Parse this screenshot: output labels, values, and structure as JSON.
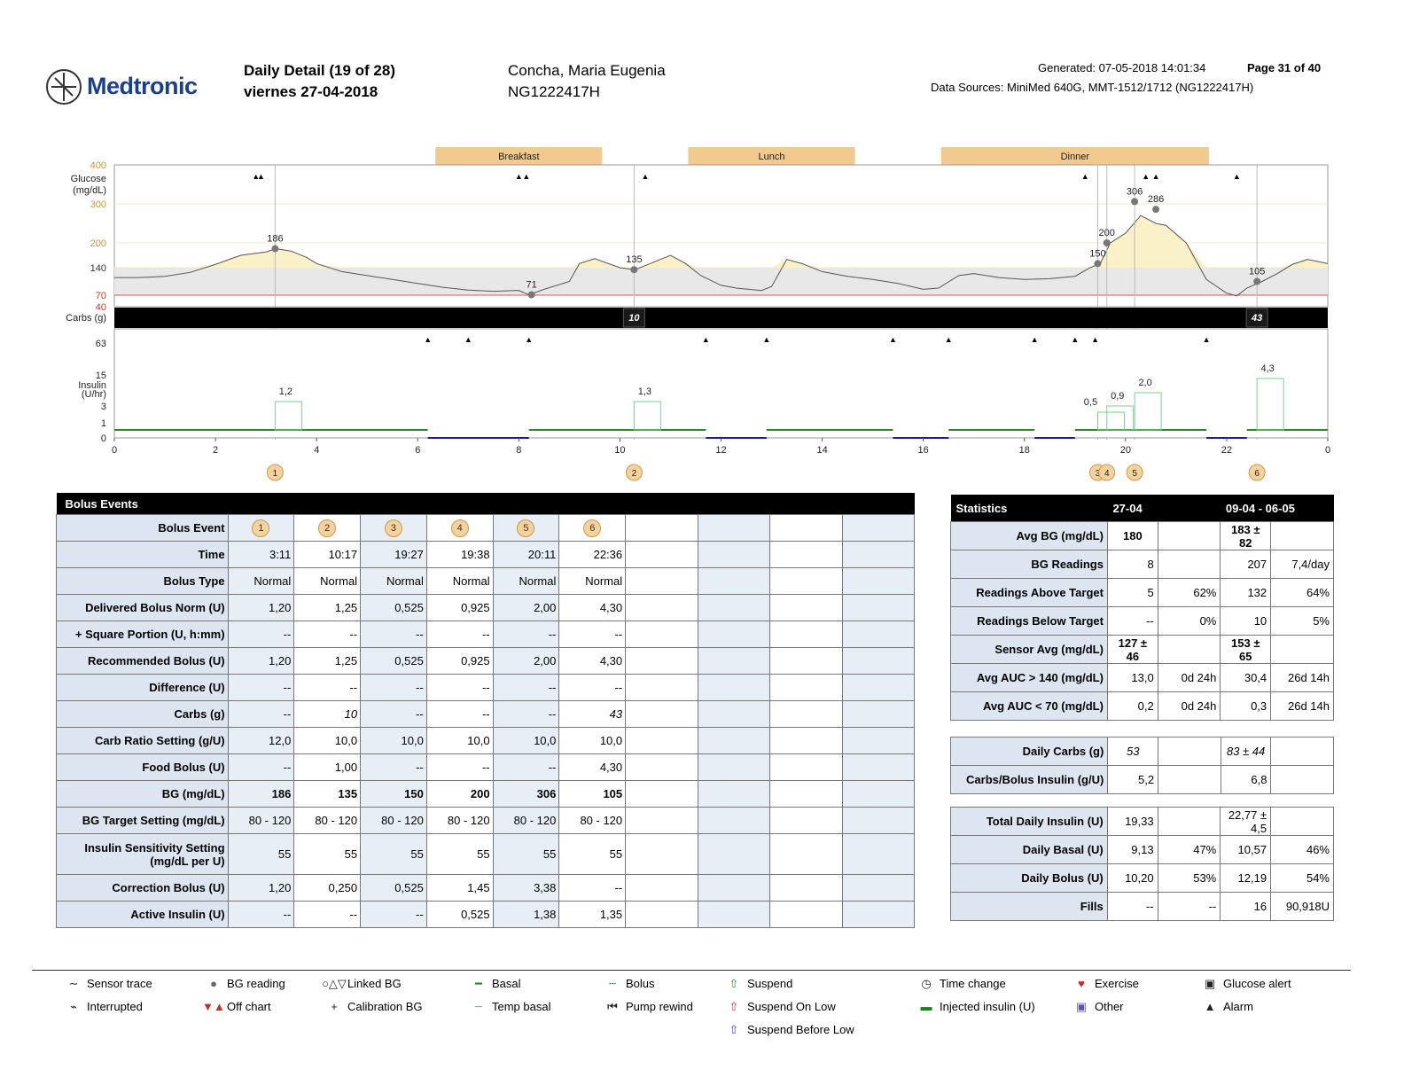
{
  "header": {
    "logo": "Medtronic",
    "title_line1": "Daily Detail (19 of 28)",
    "title_line2": "viernes 27-04-2018",
    "patient_name": "Concha, Maria Eugenia",
    "patient_id": "NG1222417H",
    "generated": "Generated: 07-05-2018 14:01:34",
    "page": "Page 31 of 40",
    "data_sources": "Data Sources: MiniMed 640G, MMT-1512/1712 (NG1222417H)"
  },
  "chart_data": {
    "type": "line",
    "meals": [
      {
        "label": "Breakfast",
        "start": 6.0,
        "end": 10.0
      },
      {
        "label": "Lunch",
        "start": 11.0,
        "end": 15.0
      },
      {
        "label": "Dinner",
        "start": 16.0,
        "end": 22.0
      }
    ],
    "glucose_axis": {
      "label": "Glucose (mg/dL)",
      "ticks": [
        "400",
        "300",
        "200",
        "140",
        "70",
        "40"
      ],
      "ylim": [
        40,
        400
      ],
      "target_low": 70,
      "target_range": [
        70,
        140
      ]
    },
    "sensor": {
      "x": [
        0,
        0.5,
        1,
        1.5,
        2,
        2.5,
        3,
        3.2,
        3.5,
        3.8,
        4,
        4.5,
        5,
        5.5,
        6,
        6.5,
        7,
        7.5,
        8,
        8.2,
        8.5,
        9,
        9.2,
        9.5,
        10,
        10.3,
        10.6,
        11,
        11.3,
        11.6,
        12,
        12.3,
        12.8,
        13,
        13.3,
        13.6,
        14,
        14.5,
        15,
        15.5,
        16,
        16.3,
        16.7,
        17,
        17.5,
        18,
        18.5,
        19,
        19.3,
        19.5,
        19.7,
        20,
        20.3,
        20.6,
        20.8,
        21.2,
        21.6,
        22,
        22.2,
        22.4,
        22.7,
        23,
        23.3,
        23.6,
        24
      ],
      "y": [
        115,
        115,
        118,
        128,
        148,
        170,
        178,
        186,
        180,
        165,
        150,
        130,
        120,
        110,
        100,
        90,
        83,
        80,
        82,
        71,
        85,
        105,
        150,
        162,
        140,
        135,
        150,
        170,
        150,
        120,
        95,
        88,
        82,
        92,
        160,
        150,
        130,
        118,
        110,
        100,
        85,
        88,
        120,
        125,
        115,
        110,
        112,
        118,
        140,
        150,
        200,
        225,
        270,
        250,
        245,
        200,
        110,
        75,
        68,
        88,
        105,
        125,
        148,
        160,
        150
      ]
    },
    "bg_readings": [
      {
        "x": 3.18,
        "value": 186
      },
      {
        "x": 8.25,
        "value": 71
      },
      {
        "x": 10.28,
        "value": 135
      },
      {
        "x": 19.45,
        "value": 150
      },
      {
        "x": 19.63,
        "value": 200
      },
      {
        "x": 20.18,
        "value": 306
      },
      {
        "x": 20.6,
        "value": 286
      },
      {
        "x": 22.6,
        "value": 105
      }
    ],
    "carbs_axis": {
      "label": "Carbs (g)"
    },
    "carbs": [
      {
        "x": 10.28,
        "value": 10
      },
      {
        "x": 22.6,
        "value": 43
      }
    ],
    "insulin_axis": {
      "label": "Insulin (U/hr)",
      "ticks": [
        "63",
        "15",
        "3",
        "1",
        "0"
      ]
    },
    "boluses": [
      {
        "x": 3.18,
        "value": "1,2"
      },
      {
        "x": 10.28,
        "value": "1,3"
      },
      {
        "x": 19.45,
        "value": "0,5"
      },
      {
        "x": 19.63,
        "value": "0,9"
      },
      {
        "x": 20.18,
        "value": "2,0"
      },
      {
        "x": 22.6,
        "value": "4,3"
      }
    ],
    "x_axis": {
      "ticks": [
        "0",
        "2",
        "4",
        "6",
        "8",
        "10",
        "12",
        "14",
        "16",
        "18",
        "20",
        "22",
        "0"
      ],
      "xlim": [
        0,
        24
      ]
    },
    "event_markers": [
      {
        "x": 3.18,
        "label": "1"
      },
      {
        "x": 10.28,
        "label": "2"
      },
      {
        "x": 19.45,
        "label": "3"
      },
      {
        "x": 19.63,
        "label": "4"
      },
      {
        "x": 20.18,
        "label": "5"
      },
      {
        "x": 22.6,
        "label": "6"
      }
    ]
  },
  "bolus_table": {
    "title": "Bolus Events",
    "events": [
      "1",
      "2",
      "3",
      "4",
      "5",
      "6"
    ],
    "rows": [
      {
        "label": "Time",
        "values": [
          "3:11",
          "10:17",
          "19:27",
          "19:38",
          "20:11",
          "22:36"
        ]
      },
      {
        "label": "Bolus Type",
        "values": [
          "Normal",
          "Normal",
          "Normal",
          "Normal",
          "Normal",
          "Normal"
        ]
      },
      {
        "label": "Delivered Bolus Norm (U)",
        "values": [
          "1,20",
          "1,25",
          "0,525",
          "0,925",
          "2,00",
          "4,30"
        ]
      },
      {
        "label": "+ Square Portion (U, h:mm)",
        "values": [
          "--",
          "--",
          "--",
          "--",
          "--",
          "--"
        ]
      },
      {
        "label": "Recommended Bolus (U)",
        "values": [
          "1,20",
          "1,25",
          "0,525",
          "0,925",
          "2,00",
          "4,30"
        ]
      },
      {
        "label": "Difference (U)",
        "values": [
          "--",
          "--",
          "--",
          "--",
          "--",
          "--"
        ]
      },
      {
        "label": "Carbs (g)",
        "values": [
          "--",
          "10",
          "--",
          "--",
          "--",
          "43"
        ]
      },
      {
        "label": "Carb Ratio Setting (g/U)",
        "values": [
          "12,0",
          "10,0",
          "10,0",
          "10,0",
          "10,0",
          "10,0"
        ]
      },
      {
        "label": "Food Bolus (U)",
        "values": [
          "--",
          "1,00",
          "--",
          "--",
          "--",
          "4,30"
        ]
      },
      {
        "label": "BG (mg/dL)",
        "values": [
          "186",
          "135",
          "150",
          "200",
          "306",
          "105"
        ]
      },
      {
        "label": "BG Target Setting (mg/dL)",
        "values": [
          "80 -  120",
          "80 -  120",
          "80 -  120",
          "80 -  120",
          "80 -  120",
          "80 -  120"
        ]
      },
      {
        "label": "Insulin Sensitivity Setting (mg/dL per U)",
        "values": [
          "55",
          "55",
          "55",
          "55",
          "55",
          "55"
        ]
      },
      {
        "label": "Correction Bolus (U)",
        "values": [
          "1,20",
          "0,250",
          "0,525",
          "1,45",
          "3,38",
          "--"
        ]
      },
      {
        "label": "Active Insulin (U)",
        "values": [
          "--",
          "--",
          "--",
          "0,525",
          "1,38",
          "1,35"
        ]
      }
    ]
  },
  "stats": {
    "title": "Statistics",
    "col1": "27-04",
    "col2": "09-04  - 06-05",
    "groups": [
      [
        {
          "label": "Avg BG (mg/dL)",
          "a": "180",
          "b": "",
          "c": "183 ± 82",
          "d": ""
        },
        {
          "label": "BG Readings",
          "a": "8",
          "b": "",
          "c": "207",
          "d": "7,4/day"
        },
        {
          "label": "Readings Above Target",
          "a": "5",
          "b": "62%",
          "c": "132",
          "d": "64%"
        },
        {
          "label": "Readings Below Target",
          "a": "--",
          "b": "0%",
          "c": "10",
          "d": "5%"
        },
        {
          "label": "Sensor Avg (mg/dL)",
          "a": "127 ± 46",
          "b": "",
          "c": "153 ± 65",
          "d": ""
        },
        {
          "label": "Avg AUC > 140 (mg/dL)",
          "a": "13,0",
          "b": "0d 24h",
          "c": "30,4",
          "d": "26d 14h"
        },
        {
          "label": "Avg AUC < 70 (mg/dL)",
          "a": "0,2",
          "b": "0d 24h",
          "c": "0,3",
          "d": "26d 14h"
        }
      ],
      [
        {
          "label": "Daily Carbs (g)",
          "a": "53",
          "b": "",
          "c": "83 ± 44",
          "d": ""
        },
        {
          "label": "Carbs/Bolus Insulin (g/U)",
          "a": "5,2",
          "b": "",
          "c": "6,8",
          "d": ""
        }
      ],
      [
        {
          "label": "Total Daily Insulin (U)",
          "a": "19,33",
          "b": "",
          "c": "22,77 ± 4,5",
          "d": ""
        },
        {
          "label": "Daily Basal (U)",
          "a": "9,13",
          "b": "47%",
          "c": "10,57",
          "d": "46%"
        },
        {
          "label": "Daily Bolus (U)",
          "a": "10,20",
          "b": "53%",
          "c": "12,19",
          "d": "54%"
        },
        {
          "label": "Fills",
          "a": "--",
          "b": "--",
          "c": "16",
          "d": "90,918U"
        }
      ]
    ]
  },
  "legend": [
    {
      "icon": "sensor-trace-icon",
      "label": "Sensor trace"
    },
    {
      "icon": "bg-reading-icon",
      "label": "BG reading"
    },
    {
      "icon": "linked-bg-icon",
      "label": "Linked BG"
    },
    {
      "icon": "basal-icon",
      "label": "Basal"
    },
    {
      "icon": "bolus-icon",
      "label": "Bolus"
    },
    {
      "icon": "suspend-icon",
      "label": "Suspend"
    },
    {
      "icon": "time-change-icon",
      "label": "Time change"
    },
    {
      "icon": "exercise-icon",
      "label": "Exercise"
    },
    {
      "icon": "glucose-alert-icon",
      "label": "Glucose alert"
    },
    {
      "icon": "interrupted-icon",
      "label": "Interrupted"
    },
    {
      "icon": "off-chart-icon",
      "label": "Off chart"
    },
    {
      "icon": "calibration-bg-icon",
      "label": "Calibration BG"
    },
    {
      "icon": "temp-basal-icon",
      "label": "Temp basal"
    },
    {
      "icon": "pump-rewind-icon",
      "label": "Pump rewind"
    },
    {
      "icon": "suspend-on-low-icon",
      "label": "Suspend On Low"
    },
    {
      "icon": "injected-insulin-icon",
      "label": "Injected insulin (U)"
    },
    {
      "icon": "other-icon",
      "label": "Other"
    },
    {
      "icon": "alarm-icon",
      "label": "Alarm"
    },
    {
      "icon": "suspend-before-low-icon",
      "label": "Suspend Before Low"
    }
  ]
}
